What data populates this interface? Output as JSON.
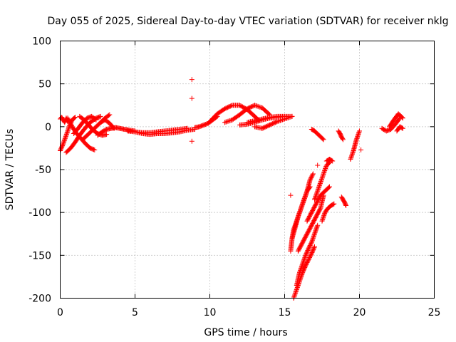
{
  "chart_data": {
    "type": "scatter",
    "title": "Day 055 of 2025, Sidereal Day-to-day VTEC variation (SDTVAR) for receiver nklg",
    "xlabel": "GPS time / hours",
    "ylabel": "SDTVAR / TECUs",
    "xlim": [
      0,
      25
    ],
    "ylim": [
      -200,
      100
    ],
    "xticks": [
      "0",
      "5",
      "10",
      "15",
      "20",
      "25"
    ],
    "yticks": [
      "100",
      "50",
      "0",
      "-50",
      "-100",
      "-150",
      "-200"
    ],
    "grid": true,
    "marker": "+",
    "color": "#ff0000",
    "segments": [
      {
        "x": [
          0.0,
          0.2,
          0.4,
          0.6,
          0.8,
          1.0
        ],
        "y": [
          -28,
          -20,
          -10,
          0,
          8,
          11
        ]
      },
      {
        "x": [
          0.0,
          0.1,
          0.2,
          0.3,
          0.4,
          0.5
        ],
        "y": [
          9,
          11,
          8,
          5,
          10,
          6
        ]
      },
      {
        "x": [
          0.4,
          0.7,
          1.0,
          1.3,
          1.6,
          2.0,
          2.4,
          2.7
        ],
        "y": [
          -30,
          -25,
          -18,
          -10,
          -3,
          5,
          10,
          12
        ]
      },
      {
        "x": [
          0.5,
          0.8,
          1.1,
          1.4,
          1.7,
          2.0,
          2.3
        ],
        "y": [
          10,
          0,
          -8,
          -14,
          -20,
          -25,
          -27
        ]
      },
      {
        "x": [
          0.9,
          1.2,
          1.5,
          1.8,
          2.1,
          2.4
        ],
        "y": [
          -8,
          -2,
          5,
          10,
          12,
          8
        ]
      },
      {
        "x": [
          1.3,
          1.6,
          1.9,
          2.2,
          2.5,
          2.8,
          3.1
        ],
        "y": [
          12,
          8,
          2,
          -4,
          -8,
          -10,
          -9
        ]
      },
      {
        "x": [
          1.5,
          1.8,
          2.1,
          2.4,
          2.7,
          3.0,
          3.3
        ],
        "y": [
          -15,
          -10,
          -5,
          0,
          5,
          10,
          14
        ]
      },
      {
        "x": [
          2.5,
          2.8,
          3.1,
          3.4,
          3.7,
          4.0,
          4.3,
          4.6,
          5.0
        ],
        "y": [
          -10,
          -6,
          -3,
          -2,
          -1,
          -2,
          -3,
          -4,
          -5
        ]
      },
      {
        "x": [
          2.7,
          3.0,
          3.3,
          3.6
        ],
        "y": [
          5,
          8,
          4,
          -2
        ]
      },
      {
        "x": [
          4.5,
          5.0,
          5.5,
          6.0,
          6.5,
          7.0,
          7.5,
          8.0,
          8.5
        ],
        "y": [
          -5,
          -6,
          -7,
          -7,
          -6,
          -5,
          -4,
          -3,
          -2
        ]
      },
      {
        "x": [
          5.0,
          5.5,
          6.0,
          6.5,
          7.0,
          7.5,
          8.0,
          8.5,
          9.0
        ],
        "y": [
          -6,
          -8,
          -9,
          -8,
          -8,
          -7,
          -6,
          -4,
          -3
        ]
      },
      {
        "x": [
          8.8
        ],
        "y": [
          55
        ]
      },
      {
        "x": [
          8.8
        ],
        "y": [
          33
        ]
      },
      {
        "x": [
          8.8
        ],
        "y": [
          -17
        ]
      },
      {
        "x": [
          9.0,
          9.3,
          9.6,
          9.9,
          10.2,
          10.5
        ],
        "y": [
          -1,
          0,
          2,
          4,
          8,
          12
        ]
      },
      {
        "x": [
          10.0,
          10.5,
          11.0,
          11.5,
          12.0,
          12.5,
          13.0,
          13.3
        ],
        "y": [
          6,
          15,
          21,
          25,
          25,
          20,
          12,
          7
        ]
      },
      {
        "x": [
          11.0,
          11.5,
          12.0,
          12.5,
          13.0,
          13.5,
          14.0
        ],
        "y": [
          5,
          8,
          14,
          21,
          25,
          22,
          14
        ]
      },
      {
        "x": [
          12.5,
          13.0,
          13.5,
          14.0,
          14.5,
          15.0,
          15.5
        ],
        "y": [
          5,
          7,
          9,
          11,
          12,
          12,
          12
        ]
      },
      {
        "x": [
          12.0,
          12.5,
          13.0,
          13.5,
          14.0,
          14.5,
          15.0
        ],
        "y": [
          2,
          3,
          5,
          8,
          10,
          11,
          12
        ]
      },
      {
        "x": [
          13.0,
          13.5,
          14.0,
          14.5,
          15.0,
          15.5
        ],
        "y": [
          0,
          -2,
          2,
          6,
          9,
          12
        ]
      },
      {
        "x": [
          15.4
        ],
        "y": [
          -80
        ]
      },
      {
        "x": [
          15.4,
          15.5,
          15.6,
          15.8,
          16.0,
          16.2,
          16.5,
          16.7
        ],
        "y": [
          -145,
          -130,
          -120,
          -110,
          -100,
          -90,
          -75,
          -70
        ]
      },
      {
        "x": [
          15.5,
          15.7,
          15.9,
          16.1,
          16.3,
          16.5,
          16.7,
          16.9
        ],
        "y": [
          -130,
          -118,
          -105,
          -95,
          -85,
          -75,
          -62,
          -55
        ]
      },
      {
        "x": [
          15.6,
          15.8,
          16.0,
          16.2,
          16.4,
          16.6,
          16.8,
          17.0
        ],
        "y": [
          -200,
          -190,
          -180,
          -170,
          -162,
          -155,
          -148,
          -140
        ]
      },
      {
        "x": [
          15.8,
          16.0,
          16.2,
          16.4,
          16.6,
          16.8,
          17.0,
          17.2
        ],
        "y": [
          -185,
          -170,
          -160,
          -150,
          -142,
          -135,
          -125,
          -115
        ]
      },
      {
        "x": [
          15.9,
          16.2,
          16.5,
          16.8,
          17.1,
          17.4,
          17.6
        ],
        "y": [
          -145,
          -135,
          -125,
          -115,
          -105,
          -95,
          -80
        ]
      },
      {
        "x": [
          16.5,
          16.8,
          17.1,
          17.4,
          17.7,
          18.0
        ],
        "y": [
          -110,
          -100,
          -90,
          -80,
          -75,
          -70
        ]
      },
      {
        "x": [
          17.0,
          17.2,
          17.4,
          17.6,
          17.8,
          18.0
        ],
        "y": [
          -85,
          -75,
          -65,
          -55,
          -45,
          -42
        ]
      },
      {
        "x": [
          17.5,
          17.7,
          17.9,
          18.1,
          18.3
        ],
        "y": [
          -110,
          -100,
          -95,
          -92,
          -90
        ]
      },
      {
        "x": [
          17.8,
          18.0,
          18.2
        ],
        "y": [
          -40,
          -38,
          -40
        ]
      },
      {
        "x": [
          16.8,
          17.0,
          17.3,
          17.6
        ],
        "y": [
          -3,
          -5,
          -10,
          -15
        ]
      },
      {
        "x": [
          17.2
        ],
        "y": [
          -45
        ]
      },
      {
        "x": [
          18.8,
          18.9,
          19.0,
          19.1
        ],
        "y": [
          -82,
          -85,
          -88,
          -92
        ]
      },
      {
        "x": [
          18.6,
          18.7,
          18.8,
          18.9
        ],
        "y": [
          -5,
          -8,
          -12,
          -15
        ]
      },
      {
        "x": [
          19.4,
          19.6,
          19.8,
          20.0
        ],
        "y": [
          -38,
          -28,
          -15,
          -5
        ]
      },
      {
        "x": [
          20.1
        ],
        "y": [
          -27
        ]
      },
      {
        "x": [
          21.5,
          21.8,
          22.1,
          22.4,
          22.7
        ],
        "y": [
          -2,
          -5,
          -3,
          3,
          10
        ]
      },
      {
        "x": [
          22.0,
          22.3,
          22.6,
          22.9
        ],
        "y": [
          0,
          8,
          15,
          10
        ]
      },
      {
        "x": [
          22.5,
          22.7,
          22.9
        ],
        "y": [
          -5,
          0,
          -2
        ]
      }
    ]
  }
}
